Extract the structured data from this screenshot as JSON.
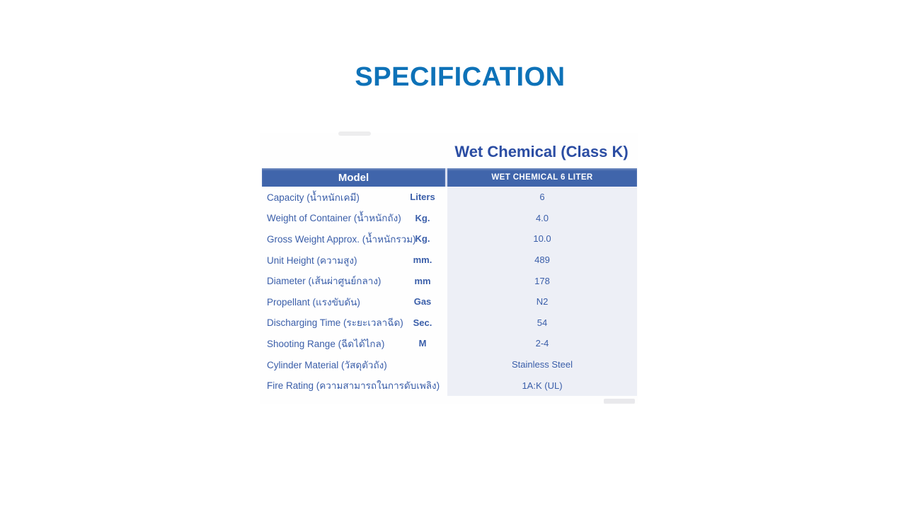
{
  "slide": {
    "title": "SPECIFICATION"
  },
  "spec_table": {
    "product_title": "Wet Chemical (Class K)",
    "columns": {
      "model": "Model",
      "model_value": "WET CHEMICAL 6 LITER"
    },
    "rows": [
      {
        "label": "Capacity (น้ำหนักเคมี)",
        "unit": "Liters",
        "value": "6"
      },
      {
        "label": "Weight of Container (น้ำหนักถัง)",
        "unit": "Kg.",
        "value": "4.0"
      },
      {
        "label": "Gross Weight Approx. (น้ำหนักรวม)",
        "unit": "Kg.",
        "value": "10.0"
      },
      {
        "label": "Unit Height (ความสูง)",
        "unit": "mm.",
        "value": "489"
      },
      {
        "label": "Diameter (เส้นผ่าศูนย์กลาง)",
        "unit": "mm",
        "value": "178"
      },
      {
        "label": "Propellant (แรงขับดัน)",
        "unit": "Gas",
        "value": "N2"
      },
      {
        "label": "Discharging Time (ระยะเวลาฉีด)",
        "unit": "Sec.",
        "value": "54"
      },
      {
        "label": "Shooting Range (ฉีดได้ไกล)",
        "unit": "M",
        "value": "2-4"
      },
      {
        "label": "Cylinder Material (วัสดุตัวถัง)",
        "unit": "",
        "value": "Stainless Steel"
      },
      {
        "label": "Fire Rating (ความสามารถในการดับเพลิง)",
        "unit": "",
        "value": "1A:K (UL)"
      }
    ]
  },
  "colors": {
    "title_blue": "#0E72B8",
    "product_title_blue": "#2B4DA3",
    "header_bar_blue": "#4065AB",
    "table_text_blue": "#3A5EA9",
    "value_panel_bg": "#EDEFF6"
  }
}
